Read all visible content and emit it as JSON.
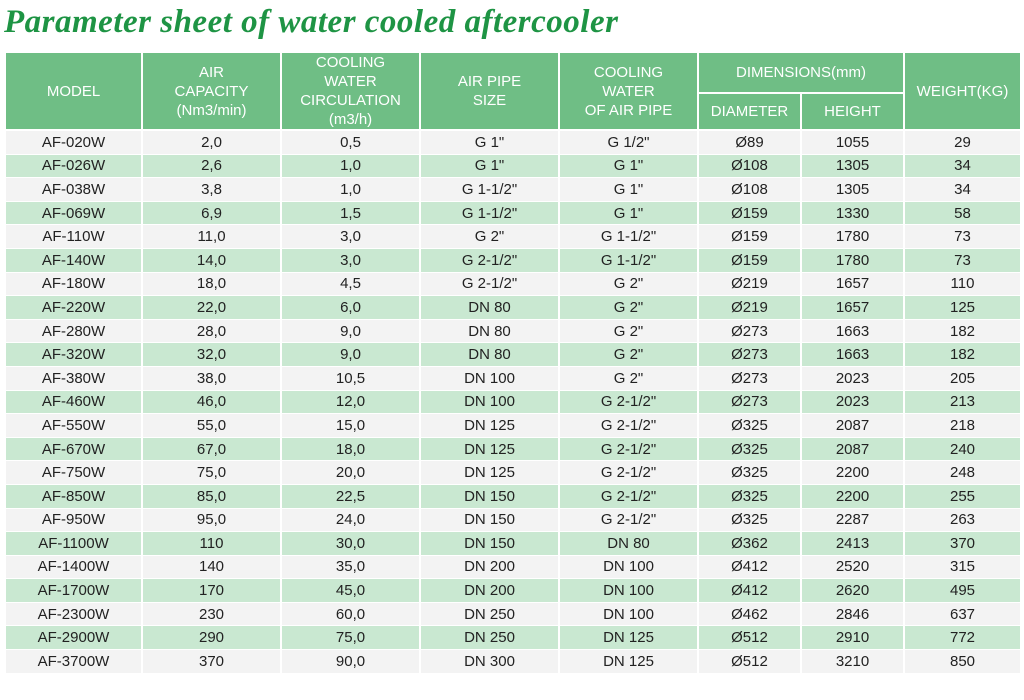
{
  "title": "Parameter sheet of water cooled aftercooler",
  "headers": {
    "model": "MODEL",
    "air_capacity": "AIR\nCAPACITY\n(Nm3/min)",
    "cooling_water": "COOLING\nWATER\nCIRCULATION\n(m3/h)",
    "air_pipe": "AIR PIPE\nSIZE",
    "cooling_pipe": "COOLING\nWATER\nOF AIR PIPE",
    "dimensions": "DIMENSIONS(mm)",
    "diameter": "DIAMETER",
    "height": "HEIGHT",
    "weight": "WEIGHT(KG)"
  },
  "rows": [
    [
      "AF-020W",
      "2,0",
      "0,5",
      "G 1\"",
      "G 1/2\"",
      "Ø89",
      "1055",
      "29"
    ],
    [
      "AF-026W",
      "2,6",
      "1,0",
      "G 1\"",
      "G 1\"",
      "Ø108",
      "1305",
      "34"
    ],
    [
      "AF-038W",
      "3,8",
      "1,0",
      "G 1-1/2\"",
      "G 1\"",
      "Ø108",
      "1305",
      "34"
    ],
    [
      "AF-069W",
      "6,9",
      "1,5",
      "G 1-1/2\"",
      "G 1\"",
      "Ø159",
      "1330",
      "58"
    ],
    [
      "AF-110W",
      "11,0",
      "3,0",
      "G 2\"",
      "G 1-1/2\"",
      "Ø159",
      "1780",
      "73"
    ],
    [
      "AF-140W",
      "14,0",
      "3,0",
      "G 2-1/2\"",
      "G 1-1/2\"",
      "Ø159",
      "1780",
      "73"
    ],
    [
      "AF-180W",
      "18,0",
      "4,5",
      "G 2-1/2\"",
      "G 2\"",
      "Ø219",
      "1657",
      "110"
    ],
    [
      "AF-220W",
      "22,0",
      "6,0",
      "DN 80",
      "G 2\"",
      "Ø219",
      "1657",
      "125"
    ],
    [
      "AF-280W",
      "28,0",
      "9,0",
      "DN 80",
      "G 2\"",
      "Ø273",
      "1663",
      "182"
    ],
    [
      "AF-320W",
      "32,0",
      "9,0",
      "DN 80",
      "G 2\"",
      "Ø273",
      "1663",
      "182"
    ],
    [
      "AF-380W",
      "38,0",
      "10,5",
      "DN 100",
      "G 2\"",
      "Ø273",
      "2023",
      "205"
    ],
    [
      "AF-460W",
      "46,0",
      "12,0",
      "DN 100",
      "G 2-1/2\"",
      "Ø273",
      "2023",
      "213"
    ],
    [
      "AF-550W",
      "55,0",
      "15,0",
      "DN 125",
      "G 2-1/2\"",
      "Ø325",
      "2087",
      "218"
    ],
    [
      "AF-670W",
      "67,0",
      "18,0",
      "DN 125",
      "G 2-1/2\"",
      "Ø325",
      "2087",
      "240"
    ],
    [
      "AF-750W",
      "75,0",
      "20,0",
      "DN 125",
      "G 2-1/2\"",
      "Ø325",
      "2200",
      "248"
    ],
    [
      "AF-850W",
      "85,0",
      "22,5",
      "DN 150",
      "G 2-1/2\"",
      "Ø325",
      "2200",
      "255"
    ],
    [
      "AF-950W",
      "95,0",
      "24,0",
      "DN 150",
      "G 2-1/2\"",
      "Ø325",
      "2287",
      "263"
    ],
    [
      "AF-1100W",
      "110",
      "30,0",
      "DN 150",
      "DN 80",
      "Ø362",
      "2413",
      "370"
    ],
    [
      "AF-1400W",
      "140",
      "35,0",
      "DN 200",
      "DN 100",
      "Ø412",
      "2520",
      "315"
    ],
    [
      "AF-1700W",
      "170",
      "45,0",
      "DN 200",
      "DN 100",
      "Ø412",
      "2620",
      "495"
    ],
    [
      "AF-2300W",
      "230",
      "60,0",
      "DN 250",
      "DN 100",
      "Ø462",
      "2846",
      "637"
    ],
    [
      "AF-2900W",
      "290",
      "75,0",
      "DN 250",
      "DN 125",
      "Ø512",
      "2910",
      "772"
    ],
    [
      "AF-3700W",
      "370",
      "90,0",
      "DN 300",
      "DN 125",
      "Ø512",
      "3210",
      "850"
    ]
  ]
}
